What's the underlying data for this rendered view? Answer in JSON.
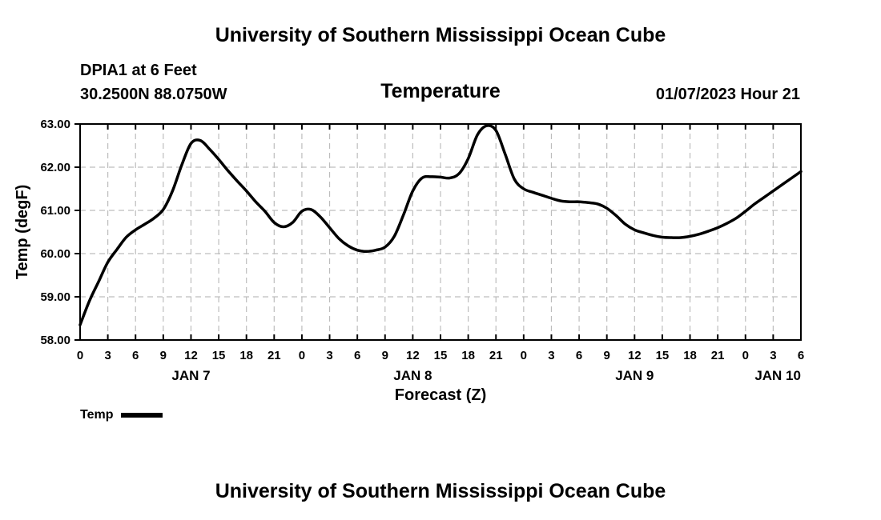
{
  "header": {
    "title": "University of Southern Mississippi Ocean Cube",
    "station": "DPIA1 at 6 Feet",
    "coords": "30.2500N  88.0750W",
    "parameter": "Temperature",
    "datetime": "01/07/2023 Hour 21"
  },
  "footer": {
    "title": "University of Southern Mississippi Ocean Cube"
  },
  "legend": {
    "label": "Temp",
    "color": "#000000"
  },
  "chart_data": {
    "type": "line",
    "title": "Temperature",
    "xlabel": "Forecast (Z)",
    "ylabel": "Temp (degF)",
    "xlim": [
      0,
      78
    ],
    "ylim": [
      58.0,
      63.0
    ],
    "yticks": [
      "58.00",
      "59.00",
      "60.00",
      "61.00",
      "62.00",
      "63.00"
    ],
    "xticks": [
      "0",
      "3",
      "6",
      "9",
      "12",
      "15",
      "18",
      "21",
      "0",
      "3",
      "6",
      "9",
      "12",
      "15",
      "18",
      "21",
      "0",
      "3",
      "6",
      "9",
      "12",
      "15",
      "18",
      "21",
      "0",
      "3",
      "6"
    ],
    "day_labels": [
      {
        "label": "JAN 7",
        "hour": 12
      },
      {
        "label": "JAN 8",
        "hour": 36
      },
      {
        "label": "JAN 9",
        "hour": 60
      },
      {
        "label": "JAN 10",
        "hour": 75.5
      }
    ],
    "grid": true,
    "series": [
      {
        "name": "Temp",
        "x": [
          0,
          1,
          2,
          3,
          4,
          5,
          6,
          7,
          8,
          9,
          10,
          11,
          12,
          13,
          14,
          15,
          16,
          17,
          18,
          19,
          20,
          21,
          22,
          23,
          24,
          25,
          26,
          27,
          28,
          29,
          30,
          31,
          32,
          33,
          34,
          35,
          36,
          37,
          38,
          39,
          40,
          41,
          42,
          43,
          44,
          45,
          46,
          47,
          48,
          49,
          50,
          51,
          52,
          53,
          54,
          55,
          56,
          57,
          58,
          59,
          60,
          61,
          62,
          63,
          64,
          65,
          66,
          67,
          68,
          69,
          70,
          71,
          72,
          73,
          74,
          75,
          76,
          77,
          78
        ],
        "values": [
          58.35,
          58.9,
          59.35,
          59.8,
          60.1,
          60.38,
          60.55,
          60.68,
          60.82,
          61.02,
          61.45,
          62.05,
          62.55,
          62.62,
          62.42,
          62.18,
          61.92,
          61.68,
          61.45,
          61.2,
          60.98,
          60.72,
          60.62,
          60.72,
          60.98,
          61.02,
          60.85,
          60.6,
          60.35,
          60.18,
          60.08,
          60.05,
          60.08,
          60.15,
          60.4,
          60.9,
          61.45,
          61.75,
          61.78,
          61.77,
          61.75,
          61.85,
          62.2,
          62.75,
          62.96,
          62.85,
          62.3,
          61.72,
          61.5,
          61.42,
          61.35,
          61.28,
          61.22,
          61.2,
          61.2,
          61.18,
          61.15,
          61.05,
          60.88,
          60.68,
          60.55,
          60.48,
          60.42,
          60.38,
          60.37,
          60.37,
          60.4,
          60.45,
          60.52,
          60.6,
          60.7,
          60.82,
          60.98,
          61.15,
          61.3,
          61.45,
          61.6,
          61.75,
          61.9
        ]
      }
    ]
  }
}
